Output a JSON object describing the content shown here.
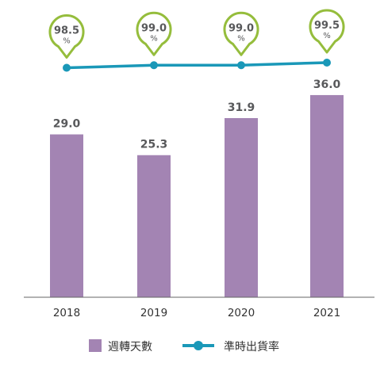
{
  "chart_data": {
    "type": "bar",
    "categories": [
      "2018",
      "2019",
      "2020",
      "2021"
    ],
    "series": [
      {
        "name": "週轉天數",
        "type": "bar",
        "values": [
          29.0,
          25.3,
          31.9,
          36.0
        ],
        "labels": [
          "29.0",
          "25.3",
          "31.9",
          "36.0"
        ],
        "color": "#a384b3"
      },
      {
        "name": "準時出貨率",
        "type": "line",
        "values": [
          98.5,
          99.0,
          99.0,
          99.5
        ],
        "labels": [
          "98.5",
          "99.0",
          "99.0",
          "99.5"
        ],
        "unit": "%",
        "color": "#1a98b8",
        "bubble_color": "#95bd3c"
      }
    ],
    "legend_position": "bottom",
    "grid": false
  }
}
